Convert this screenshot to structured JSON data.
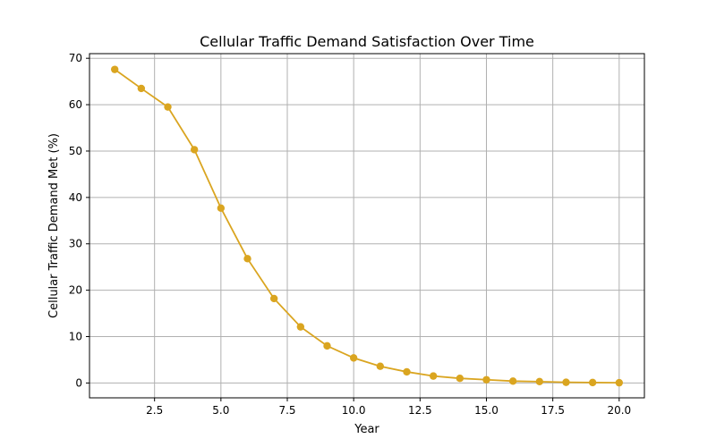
{
  "chart_data": {
    "type": "line",
    "title": "Cellular Traffic Demand Satisfaction Over Time",
    "xlabel": "Year",
    "ylabel": "Cellular Traffic Demand Met (%)",
    "xlim": [
      0.05,
      20.95
    ],
    "ylim": [
      -3.2,
      71.0
    ],
    "xticks": [
      2.5,
      5.0,
      7.5,
      10.0,
      12.5,
      15.0,
      17.5,
      20.0
    ],
    "xtick_labels": [
      "2.5",
      "5.0",
      "7.5",
      "10.0",
      "12.5",
      "15.0",
      "17.5",
      "20.0"
    ],
    "yticks": [
      0,
      10,
      20,
      30,
      40,
      50,
      60,
      70
    ],
    "ytick_labels": [
      "0",
      "10",
      "20",
      "30",
      "40",
      "50",
      "60",
      "70"
    ],
    "grid": true,
    "series": [
      {
        "color": "#DAA520",
        "marker": "circle",
        "x": [
          1,
          2,
          3,
          4,
          5,
          6,
          7,
          8,
          9,
          10,
          11,
          12,
          13,
          14,
          15,
          16,
          17,
          18,
          19,
          20
        ],
        "y": [
          67.6,
          63.5,
          59.5,
          50.3,
          37.7,
          26.8,
          18.2,
          12.1,
          8.0,
          5.4,
          3.6,
          2.4,
          1.5,
          1.0,
          0.7,
          0.4,
          0.3,
          0.15,
          0.1,
          0.05
        ]
      }
    ]
  }
}
